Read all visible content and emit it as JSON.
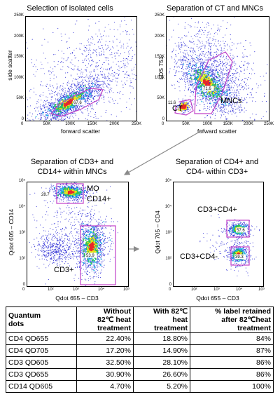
{
  "panels": {
    "p1": {
      "title": "Selection of isolated cells",
      "ylabel": "side scatter",
      "xlabel": "forward scatter",
      "xticks": [
        "0",
        "50K",
        "100K",
        "150K",
        "200K",
        "250K"
      ],
      "yticks": [
        "250K",
        "200K",
        "150K",
        "100K",
        "50K",
        "0"
      ],
      "gate_pct": "67.6"
    },
    "p2": {
      "title": "Separation of CT and MNCs",
      "ylabel": "LDS 751",
      "xlabel": "forward scatter",
      "xticks": [
        "0",
        "50K",
        "100K",
        "150K",
        "200K",
        "250K"
      ],
      "yticks": [
        "250K",
        "200K",
        "150K",
        "100K",
        "50K",
        "0"
      ],
      "gate_ct_pct": "11.6",
      "gate_mnc_pct": "71.6",
      "label_ct": "CT",
      "label_mnc": "MNCs"
    },
    "p3": {
      "title_line1": "Separation of CD3+ and",
      "title_line2": "CD14+ within MNCs",
      "ylabel": "Qdot 605 – CD14",
      "xlabel": "Qdot 655 – CD3",
      "xticks": [
        "0",
        "10²",
        "10³",
        "10⁴",
        "10⁵"
      ],
      "yticks": [
        "10⁵",
        "10⁴",
        "10³",
        "10²",
        "0"
      ],
      "gate_mo_pct": "28.7",
      "gate_cd3_pct": "53.9",
      "label_mo": "MO",
      "label_cd14": "CD14+",
      "label_cd3": "CD3+"
    },
    "p4": {
      "title_line1": "Separation of CD4+ and",
      "title_line2": "CD4- within CD3+",
      "ylabel": "Qdot 705 – CD4",
      "xlabel": "Qdot 655 – CD3",
      "xticks": [
        "0",
        "10²",
        "10³",
        "10⁴",
        "10⁵"
      ],
      "yticks": [
        "10⁵",
        "10⁴",
        "10³",
        "10²",
        "0"
      ],
      "gate_cd4pos_pct": "57.6",
      "gate_cd4neg_pct": "39.3",
      "label_cd4pos": "CD3+CD4+",
      "label_cd4neg": "CD3+CD4-"
    }
  },
  "chart_data": {
    "type": "table",
    "headers": [
      [
        "Quantum",
        "dots"
      ],
      [
        "Without",
        "82℃ heat",
        "treatment"
      ],
      [
        "With 82℃",
        "heat",
        "treatment"
      ],
      [
        "% label retained",
        "after 82℃heat",
        "treatment"
      ]
    ],
    "rows": [
      [
        "CD4 QD655",
        "22.40%",
        "18.80%",
        "84%"
      ],
      [
        "CD4 QD705",
        "17.20%",
        "14.90%",
        "87%"
      ],
      [
        "CD3 QD605",
        "32.50%",
        "28.10%",
        "86%"
      ],
      [
        "CD3 QD655",
        "30.90%",
        "26.60%",
        "86%"
      ],
      [
        "CD14 QD605",
        "4.70%",
        "5.20%",
        "100%"
      ]
    ]
  },
  "colors": {
    "dots": "#2b2bd6",
    "dense": "#31c44a",
    "denser": "#f2e318",
    "core": "#e8282a",
    "gate": "#c040c8",
    "arrow": "#8a8a8a"
  }
}
